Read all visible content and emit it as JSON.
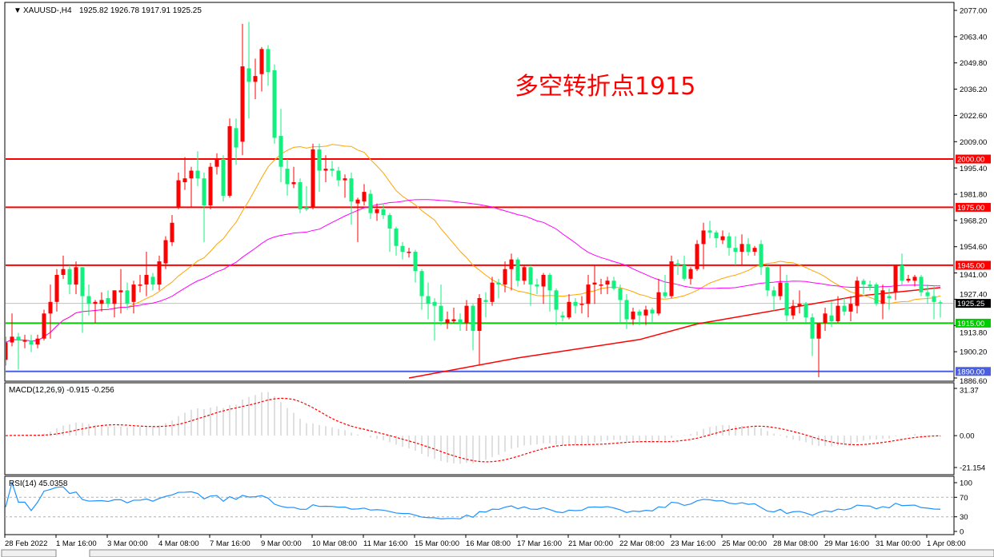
{
  "header": {
    "symbol": "XAUUSD-,H4",
    "ohlc": "1925.82 1926.78 1917.91 1925.25"
  },
  "annotation": "多空转折点1915",
  "colors": {
    "bull": "#ff0000",
    "bear": "#12f07e",
    "ma_fast": "#ffa500",
    "ma_slow": "#ff00ff",
    "ma_long": "#ff0000",
    "macd_hist": "#c0c0c0",
    "macd_signal": "#ff0000",
    "rsi": "#1e90ff",
    "current_price_line": "#c0c0c0"
  },
  "chart_data": {
    "type": "candlestick",
    "title": "XAUUSD-,H4",
    "ylim": [
      1886.6,
      2077.0
    ],
    "y_ticks": [
      "2077.00",
      "2063.40",
      "2049.80",
      "2036.20",
      "2022.60",
      "2009.00",
      "1995.40",
      "1981.80",
      "1968.20",
      "1954.60",
      "1941.00",
      "1927.40",
      "1913.80",
      "1900.20",
      "1886.60"
    ],
    "x_ticks": [
      "28 Feb 2022",
      "1 Mar 16:00",
      "3 Mar 00:00",
      "4 Mar 08:00",
      "7 Mar 16:00",
      "9 Mar 00:00",
      "10 Mar 08:00",
      "11 Mar 16:00",
      "15 Mar 00:00",
      "16 Mar 08:00",
      "17 Mar 16:00",
      "21 Mar 00:00",
      "22 Mar 08:00",
      "23 Mar 16:00",
      "25 Mar 00:00",
      "28 Mar 08:00",
      "29 Mar 16:00",
      "31 Mar 00:00",
      "1 Apr 08:00"
    ],
    "x_tick_every_bars": 8,
    "candles_ohlc": [
      [
        1896,
        1908,
        1893,
        1905
      ],
      [
        1905,
        1920,
        1903,
        1908
      ],
      [
        1908,
        1910,
        1891,
        1906
      ],
      [
        1906,
        1909,
        1902,
        1906
      ],
      [
        1906,
        1909,
        1900,
        1904
      ],
      [
        1904,
        1909,
        1902,
        1907
      ],
      [
        1907,
        1922,
        1906,
        1920
      ],
      [
        1920,
        1935,
        1907,
        1926
      ],
      [
        1926,
        1943,
        1921,
        1940
      ],
      [
        1940,
        1950,
        1938,
        1943
      ],
      [
        1943,
        1945,
        1930,
        1935
      ],
      [
        1935,
        1947,
        1930,
        1944
      ],
      [
        1944,
        1944,
        1910,
        1929
      ],
      [
        1929,
        1935,
        1919,
        1925
      ],
      [
        1925,
        1927,
        1915,
        1926
      ],
      [
        1925,
        1931,
        1921,
        1927
      ],
      [
        1928,
        1932,
        1923,
        1925
      ],
      [
        1925,
        1932,
        1918,
        1932
      ],
      [
        1931,
        1943,
        1920,
        1932
      ],
      [
        1932,
        1936,
        1922,
        1925
      ],
      [
        1926,
        1937,
        1920,
        1935
      ],
      [
        1935,
        1940,
        1931,
        1935
      ],
      [
        1935,
        1952,
        1929,
        1940
      ],
      [
        1939,
        1941,
        1932,
        1935
      ],
      [
        1935,
        1950,
        1932,
        1947
      ],
      [
        1946,
        1960,
        1943,
        1958
      ],
      [
        1957,
        1971,
        1955,
        1967
      ],
      [
        1975,
        1993,
        1974,
        1989
      ],
      [
        1988,
        2001,
        1984,
        1990
      ],
      [
        1990,
        1996,
        1975,
        1994
      ],
      [
        1994,
        2004,
        1986,
        1990
      ],
      [
        1990,
        1993,
        1957,
        1976
      ],
      [
        1976,
        1998,
        1974,
        1996
      ],
      [
        1996,
        2003,
        1992,
        2000
      ],
      [
        2000,
        2002,
        1978,
        1981
      ],
      [
        1981,
        2021,
        1980,
        2017
      ],
      [
        2016,
        2021,
        1997,
        2006
      ],
      [
        2009,
        2070,
        2002,
        2048
      ],
      [
        2047,
        2071,
        2021,
        2040
      ],
      [
        2040,
        2052,
        2031,
        2043
      ],
      [
        2044,
        2058,
        2035,
        2057
      ],
      [
        2057,
        2059,
        2038,
        2045
      ],
      [
        2046,
        2049,
        2008,
        2011
      ],
      [
        2012,
        2026,
        1988,
        1996
      ],
      [
        1995,
        2000,
        1981,
        1987
      ],
      [
        1987,
        1996,
        1985,
        1988
      ],
      [
        1988,
        1990,
        1972,
        1974
      ],
      [
        1975,
        1986,
        1973,
        1974
      ],
      [
        1975,
        2008,
        1974,
        2005
      ],
      [
        2005,
        2008,
        1983,
        1994
      ],
      [
        1994,
        2002,
        1988,
        1995
      ],
      [
        1995,
        1999,
        1991,
        1994
      ],
      [
        1994,
        1996,
        1986,
        1989
      ],
      [
        1989,
        1992,
        1980,
        1990
      ],
      [
        1990,
        1993,
        1966,
        1978
      ],
      [
        1977,
        1980,
        1957,
        1979
      ],
      [
        1978,
        1987,
        1976,
        1983
      ],
      [
        1982,
        1984,
        1969,
        1972
      ],
      [
        1972,
        1977,
        1968,
        1974
      ],
      [
        1974,
        1977,
        1969,
        1971
      ],
      [
        1971,
        1972,
        1952,
        1964
      ],
      [
        1964,
        1965,
        1950,
        1955
      ],
      [
        1955,
        1957,
        1948,
        1952
      ],
      [
        1952,
        1954,
        1949,
        1952
      ],
      [
        1952,
        1953,
        1936,
        1942
      ],
      [
        1942,
        1943,
        1922,
        1929
      ],
      [
        1929,
        1936,
        1917,
        1925
      ],
      [
        1926,
        1928,
        1906,
        1924
      ],
      [
        1924,
        1935,
        1914,
        1916
      ],
      [
        1915,
        1921,
        1912,
        1917
      ],
      [
        1916,
        1923,
        1915,
        1917
      ],
      [
        1917,
        1920,
        1911,
        1915
      ],
      [
        1915,
        1927,
        1911,
        1924
      ],
      [
        1924,
        1925,
        1901,
        1911
      ],
      [
        1911,
        1930,
        1893,
        1928
      ],
      [
        1927,
        1931,
        1918,
        1926
      ],
      [
        1926,
        1939,
        1924,
        1936
      ],
      [
        1936,
        1938,
        1928,
        1935
      ],
      [
        1935,
        1947,
        1931,
        1943
      ],
      [
        1943,
        1951,
        1932,
        1948
      ],
      [
        1948,
        1949,
        1934,
        1937
      ],
      [
        1937,
        1945,
        1935,
        1944
      ],
      [
        1944,
        1945,
        1924,
        1935
      ],
      [
        1935,
        1938,
        1930,
        1934
      ],
      [
        1934,
        1941,
        1925,
        1940
      ],
      [
        1940,
        1941,
        1921,
        1932
      ],
      [
        1932,
        1933,
        1914,
        1922
      ],
      [
        1919,
        1921,
        1916,
        1918
      ],
      [
        1918,
        1930,
        1917,
        1926
      ],
      [
        1926,
        1928,
        1920,
        1924
      ],
      [
        1925,
        1929,
        1920,
        1925
      ],
      [
        1925,
        1940,
        1918,
        1935
      ],
      [
        1935,
        1945,
        1925,
        1936
      ],
      [
        1935,
        1938,
        1930,
        1935
      ],
      [
        1935,
        1939,
        1930,
        1937
      ],
      [
        1937,
        1939,
        1932,
        1933
      ],
      [
        1933,
        1935,
        1915,
        1927
      ],
      [
        1927,
        1930,
        1912,
        1917
      ],
      [
        1917,
        1923,
        1914,
        1921
      ],
      [
        1921,
        1922,
        1914,
        1919
      ],
      [
        1919,
        1924,
        1914,
        1922
      ],
      [
        1922,
        1923,
        1915,
        1920
      ],
      [
        1920,
        1938,
        1919,
        1931
      ],
      [
        1931,
        1940,
        1928,
        1929
      ],
      [
        1929,
        1950,
        1928,
        1947
      ],
      [
        1946,
        1948,
        1940,
        1945
      ],
      [
        1945,
        1950,
        1937,
        1938
      ],
      [
        1938,
        1944,
        1935,
        1943
      ],
      [
        1943,
        1958,
        1942,
        1956
      ],
      [
        1956,
        1967,
        1943,
        1963
      ],
      [
        1963,
        1968,
        1959,
        1962
      ],
      [
        1962,
        1963,
        1954,
        1959
      ],
      [
        1958,
        1963,
        1956,
        1960
      ],
      [
        1960,
        1962,
        1950,
        1954
      ],
      [
        1954,
        1960,
        1945,
        1952
      ],
      [
        1952,
        1961,
        1945,
        1956
      ],
      [
        1956,
        1959,
        1950,
        1952
      ],
      [
        1952,
        1955,
        1950,
        1954
      ],
      [
        1956,
        1958,
        1940,
        1944
      ],
      [
        1944,
        1945,
        1929,
        1932
      ],
      [
        1932,
        1934,
        1921,
        1929
      ],
      [
        1929,
        1945,
        1927,
        1936
      ],
      [
        1936,
        1940,
        1916,
        1919
      ],
      [
        1919,
        1927,
        1917,
        1924
      ],
      [
        1924,
        1932,
        1920,
        1925
      ],
      [
        1925,
        1926,
        1915,
        1918
      ],
      [
        1918,
        1920,
        1898,
        1907
      ],
      [
        1907,
        1915,
        1887,
        1915
      ],
      [
        1915,
        1923,
        1911,
        1920
      ],
      [
        1919,
        1926,
        1913,
        1916
      ],
      [
        1916,
        1929,
        1915,
        1924
      ],
      [
        1924,
        1928,
        1919,
        1921
      ],
      [
        1921,
        1929,
        1916,
        1925
      ],
      [
        1924,
        1939,
        1920,
        1937
      ],
      [
        1937,
        1938,
        1930,
        1935
      ],
      [
        1935,
        1937,
        1932,
        1934
      ],
      [
        1935,
        1936,
        1924,
        1925
      ],
      [
        1925,
        1935,
        1917,
        1932
      ],
      [
        1929,
        1933,
        1922,
        1928
      ],
      [
        1931,
        1945,
        1927,
        1945
      ],
      [
        1945,
        1951,
        1935,
        1937
      ],
      [
        1937,
        1940,
        1936,
        1938
      ],
      [
        1937,
        1940,
        1934,
        1939
      ],
      [
        1939,
        1940,
        1929,
        1931
      ],
      [
        1931,
        1935,
        1925,
        1929
      ],
      [
        1929,
        1934,
        1917,
        1926
      ],
      [
        1925.82,
        1926.78,
        1917.91,
        1925.25
      ]
    ],
    "moving_averages": [
      {
        "type": "SMA",
        "period": 20,
        "color": "#ffa500"
      },
      {
        "type": "SMA",
        "period": 50,
        "color": "#ff00ff"
      }
    ],
    "long_ma_points": [
      [
        63,
        1886.6
      ],
      [
        80,
        1897
      ],
      [
        99,
        1906.5
      ],
      [
        108,
        1914.6
      ],
      [
        133,
        1929
      ],
      [
        146,
        1933.4
      ]
    ],
    "horizontal_lines": [
      {
        "price": 2000.0,
        "label": "2000.00",
        "color": "#ff0000"
      },
      {
        "price": 1975.0,
        "label": "1975.00",
        "color": "#ff0000"
      },
      {
        "price": 1945.0,
        "label": "1945.00",
        "color": "#ff0000"
      },
      {
        "price": 1915.0,
        "label": "1915.00",
        "color": "#00cc00"
      },
      {
        "price": 1890.0,
        "label": "1890.00",
        "color": "#4a5fe0"
      }
    ],
    "current_price": {
      "price": 1925.25,
      "label": "1925.25"
    },
    "macd": {
      "label": "MACD(12,26,9) -0.915 -0.256",
      "fast": 12,
      "slow": 26,
      "signal": 9,
      "ylim": [
        -21.154,
        31.37
      ],
      "y_ticks": [
        "31.37",
        "0.00",
        "-21.154"
      ]
    },
    "rsi": {
      "label": "RSI(14) 45.0358",
      "period": 14,
      "levels": [
        70,
        30
      ],
      "y_ticks": [
        "100",
        "70",
        "30",
        "0"
      ]
    }
  }
}
